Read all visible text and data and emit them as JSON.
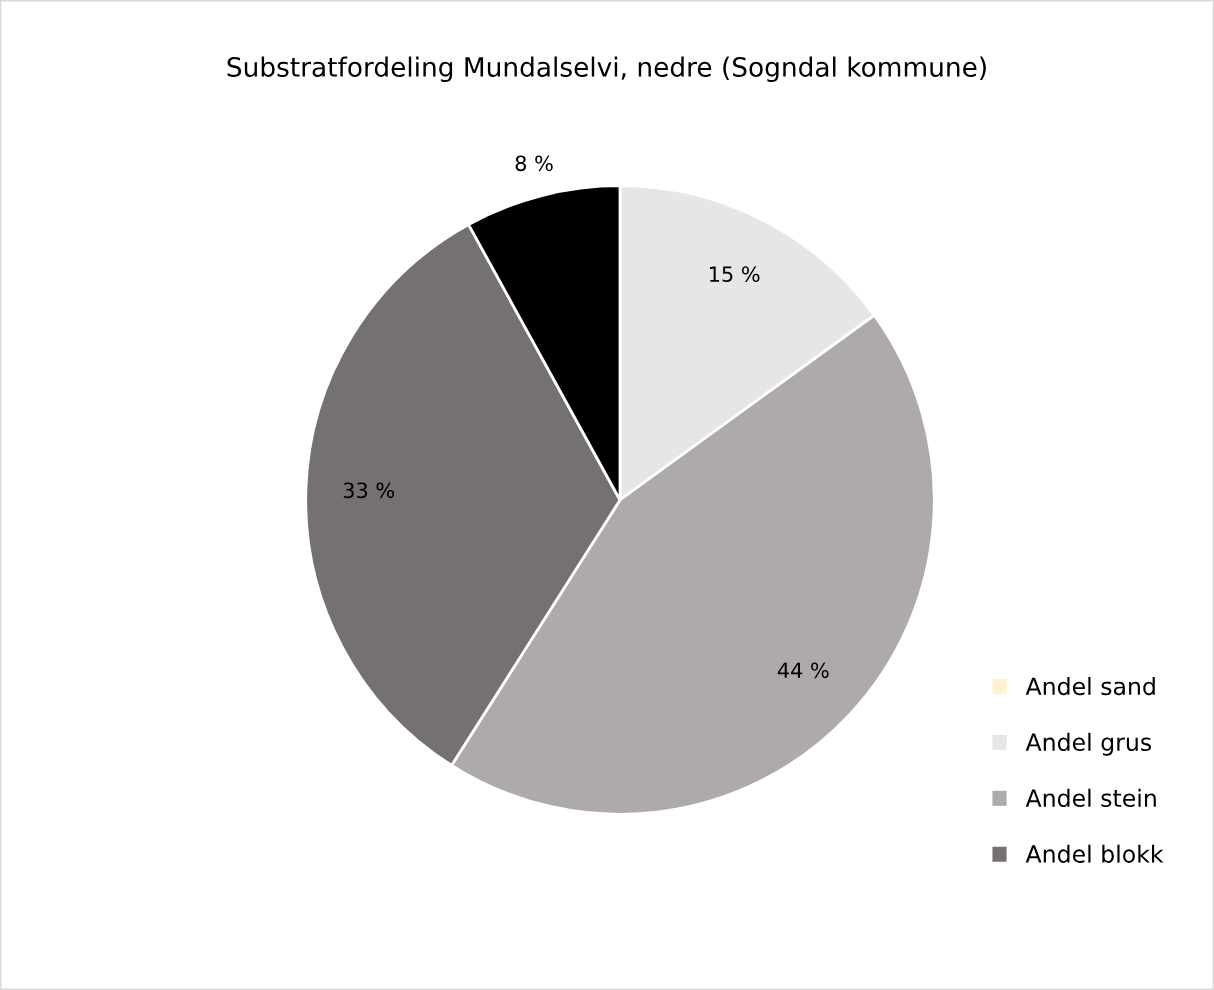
{
  "chart_data": {
    "type": "pie",
    "title": "Substratfordeling Mundalselvi, nedre (Sogndal kommune)",
    "categories": [
      "Andel sand",
      "Andel grus",
      "Andel stein",
      "Andel blokk",
      null
    ],
    "values": [
      0,
      15,
      44,
      33,
      8
    ],
    "colors": [
      "#fff2cc",
      "#e7e6e6",
      "#aeaaaa",
      "#767171",
      "#000000"
    ],
    "value_labels": [
      null,
      "15 %",
      "44 %",
      "33 %",
      "8 %"
    ],
    "legend": "right"
  }
}
